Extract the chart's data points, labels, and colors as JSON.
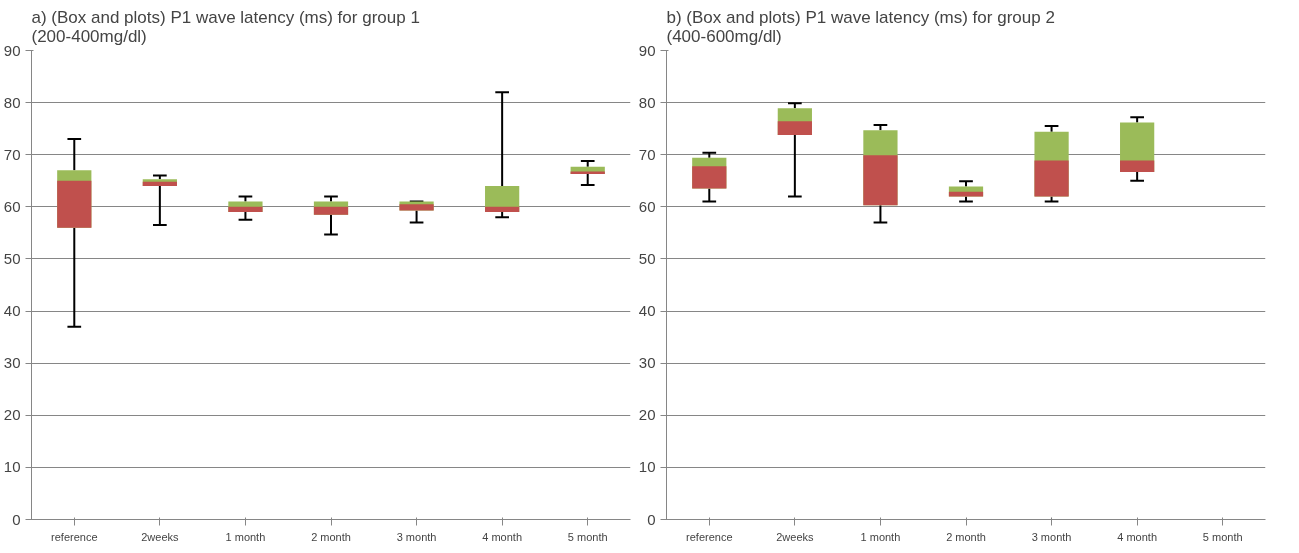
{
  "chart_data": [
    {
      "type": "box",
      "title": "a) (Box and plots) P1 wave latency (ms) for group 1 (200-400mg/dl)",
      "categories": [
        "reference",
        "2weeks",
        "1 month",
        "2 month",
        "3 month",
        "4 month",
        "5 month"
      ],
      "colors": [
        "#c0504d",
        "#c0504d",
        "#c0504d",
        "#c0504d",
        "#c0504d",
        "#c0504d",
        "#c0504d"
      ],
      "ylim": [
        0,
        90
      ],
      "yticks": [
        0,
        10,
        20,
        30,
        40,
        50,
        60,
        70,
        80,
        90
      ],
      "grid": "y",
      "series": [
        {
          "color": "#9bbb59",
          "boxes": [
            {
              "low": 37,
              "q1": 56,
              "median": 65,
              "q3": 67,
              "high": 73
            },
            {
              "low": 56.5,
              "q1": 64,
              "median": 64.8,
              "q3": 65.3,
              "high": 66
            },
            {
              "low": 57.5,
              "q1": 59,
              "median": 60,
              "q3": 61,
              "high": 62
            },
            {
              "low": 54.7,
              "q1": 58.5,
              "median": 60,
              "q3": 61,
              "high": 62
            },
            {
              "low": 57,
              "q1": 59.3,
              "median": 60.5,
              "q3": 61,
              "high": 61
            },
            {
              "low": 58,
              "q1": 59,
              "median": 60,
              "q3": 64,
              "high": 82
            },
            {
              "low": 64.2,
              "q1": 66.3,
              "median": 66.8,
              "q3": 67.7,
              "high": 68.8
            }
          ]
        }
      ]
    },
    {
      "type": "box",
      "title": "b) (Box and plots) P1 wave latency (ms) for group 2 (400-600mg/dl)",
      "categories": [
        "reference",
        "2weeks",
        "1 month",
        "2 month",
        "3 month",
        "4 month",
        "5 month"
      ],
      "colors": [
        "#c0504d",
        "#c0504d",
        "#c0504d",
        "#c0504d",
        "#c0504d",
        "#c0504d",
        "#c0504d"
      ],
      "ylim": [
        0,
        90
      ],
      "yticks": [
        0,
        10,
        20,
        30,
        40,
        50,
        60,
        70,
        80,
        90
      ],
      "grid": "y",
      "series": [
        {
          "color": "#9bbb59",
          "boxes": [
            {
              "low": 61,
              "q1": 63.5,
              "median": 67.8,
              "q3": 69.4,
              "high": 70.4
            },
            {
              "low": 62,
              "q1": 73.8,
              "median": 76.4,
              "q3": 78.9,
              "high": 79.9
            },
            {
              "low": 57,
              "q1": 60.3,
              "median": 69.9,
              "q3": 74.7,
              "high": 75.7
            },
            {
              "low": 61,
              "q1": 62,
              "median": 62.9,
              "q3": 63.9,
              "high": 64.9
            },
            {
              "low": 61,
              "q1": 62,
              "median": 68.9,
              "q3": 74.4,
              "high": 75.5
            },
            {
              "low": 65,
              "q1": 66.7,
              "median": 68.9,
              "q3": 76.2,
              "high": 77.2
            },
            null
          ]
        }
      ]
    }
  ]
}
